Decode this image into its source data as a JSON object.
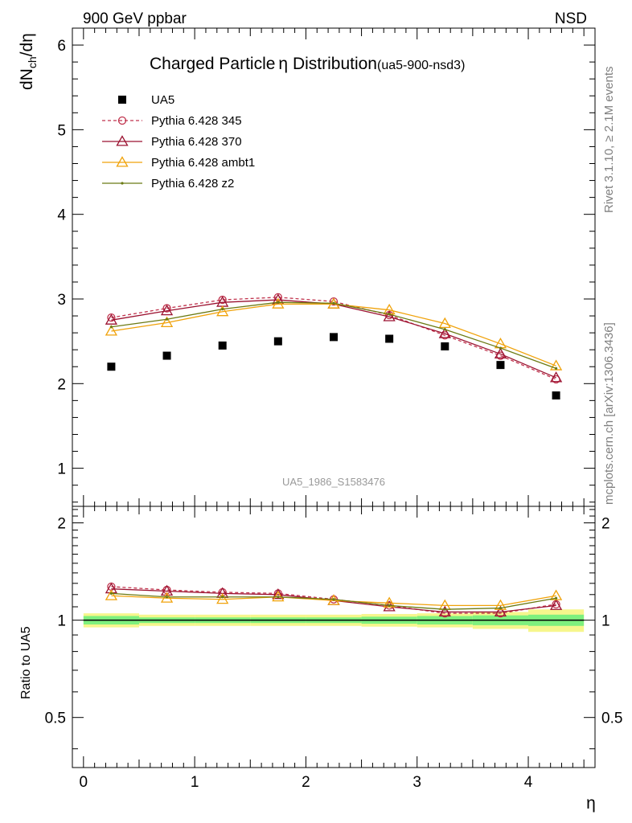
{
  "header": {
    "left": "900 GeV ppbar",
    "right": "NSD"
  },
  "side_text": {
    "top": "Rivet 3.1.10, ≥ 2.1M events",
    "bottom": "mcplots.cern.ch [arXiv:1306.3436]"
  },
  "chart_data": [
    {
      "type": "scatter",
      "title": "Charged Particle",
      "title_symbol": "η",
      "title_rest": " Distribution",
      "title_tag": "(ua5-900-nsd3)",
      "ylabel": "dN",
      "ylabel_sub": "ch",
      "ylabel_rest": "/dη",
      "reference": "UA5_1986_S1583476",
      "xlim": [
        -0.1,
        4.6
      ],
      "ylim": [
        0.55,
        6.2
      ],
      "yticks": [
        "1",
        "2",
        "3",
        "4",
        "5",
        "6"
      ],
      "x": [
        0.25,
        0.75,
        1.25,
        1.75,
        2.25,
        2.75,
        3.25,
        3.75,
        4.25
      ],
      "series": [
        {
          "name": "UA5",
          "color": "#000000",
          "marker": "square",
          "line": "none",
          "values": [
            2.2,
            2.33,
            2.45,
            2.5,
            2.55,
            2.53,
            2.44,
            2.22,
            1.86
          ]
        },
        {
          "name": "Pythia 6.428 345",
          "color": "#c0334d",
          "marker": "circle-open",
          "line": "dashed",
          "values": [
            2.78,
            2.89,
            2.99,
            3.02,
            2.97,
            2.81,
            2.57,
            2.33,
            2.05
          ]
        },
        {
          "name": "Pythia 6.428 370",
          "color": "#9b1230",
          "marker": "triangle-open",
          "line": "solid",
          "values": [
            2.75,
            2.86,
            2.96,
            2.99,
            2.94,
            2.79,
            2.59,
            2.35,
            2.07
          ]
        },
        {
          "name": "Pythia 6.428 ambt1",
          "color": "#f0a20a",
          "marker": "triangle-open",
          "line": "solid",
          "values": [
            2.62,
            2.72,
            2.85,
            2.94,
            2.94,
            2.87,
            2.71,
            2.47,
            2.21
          ]
        },
        {
          "name": "Pythia 6.428 z2",
          "color": "#6b7a14",
          "marker": "dot",
          "line": "solid",
          "values": [
            2.67,
            2.76,
            2.88,
            2.96,
            2.95,
            2.82,
            2.64,
            2.42,
            2.18
          ]
        }
      ]
    },
    {
      "type": "line",
      "ylabel": "Ratio to UA5",
      "xlabel": "η",
      "xlim": [
        -0.1,
        4.6
      ],
      "ylim": [
        0.35,
        2.25
      ],
      "xticks": [
        "0",
        "1",
        "2",
        "3",
        "4"
      ],
      "yticks": [
        "0.5",
        "1",
        "2"
      ],
      "x": [
        0.25,
        0.75,
        1.25,
        1.75,
        2.25,
        2.75,
        3.25,
        3.75,
        4.25
      ],
      "band": {
        "x_edges": [
          0,
          0.5,
          1.0,
          1.5,
          2.0,
          2.5,
          3.0,
          3.5,
          4.0,
          4.5
        ],
        "inner": [
          0.03,
          0.02,
          0.02,
          0.02,
          0.02,
          0.025,
          0.03,
          0.035,
          0.04
        ],
        "outer": [
          0.05,
          0.04,
          0.04,
          0.04,
          0.04,
          0.045,
          0.05,
          0.06,
          0.08
        ],
        "inner_color": "#7ef07e",
        "outer_color": "#f6f68c"
      },
      "series": [
        {
          "name": "Pythia 6.428 345",
          "color": "#c0334d",
          "marker": "circle-open",
          "line": "dashed",
          "values": [
            1.27,
            1.24,
            1.22,
            1.21,
            1.16,
            1.11,
            1.05,
            1.05,
            1.12
          ]
        },
        {
          "name": "Pythia 6.428 370",
          "color": "#9b1230",
          "marker": "triangle-open",
          "line": "solid",
          "values": [
            1.25,
            1.23,
            1.21,
            1.2,
            1.15,
            1.1,
            1.06,
            1.06,
            1.11
          ]
        },
        {
          "name": "Pythia 6.428 ambt1",
          "color": "#f0a20a",
          "marker": "triangle-open",
          "line": "solid",
          "values": [
            1.19,
            1.17,
            1.16,
            1.18,
            1.15,
            1.13,
            1.11,
            1.11,
            1.19
          ]
        },
        {
          "name": "Pythia 6.428 z2",
          "color": "#6b7a14",
          "marker": "dot",
          "line": "solid",
          "values": [
            1.21,
            1.18,
            1.18,
            1.18,
            1.16,
            1.11,
            1.08,
            1.09,
            1.17
          ]
        }
      ]
    }
  ]
}
